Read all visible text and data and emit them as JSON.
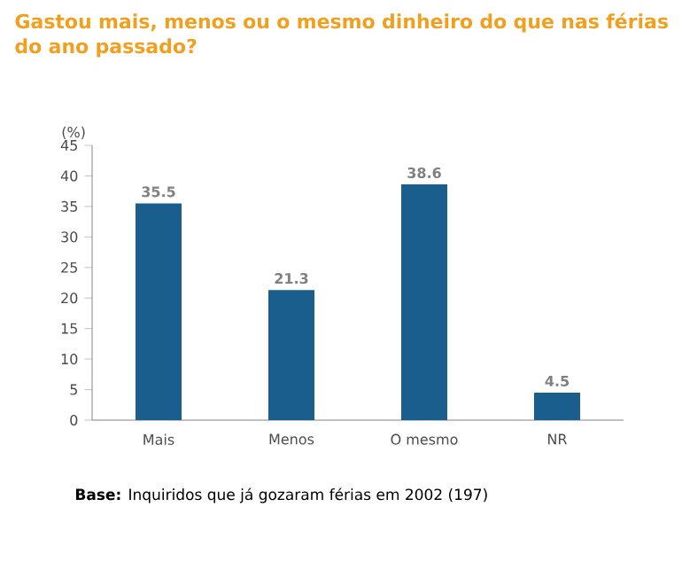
{
  "chart_data": {
    "type": "bar",
    "title": "Gastou mais, menos ou o mesmo dinheiro do que nas férias do ano passado?",
    "ylabel": "(%)",
    "categories": [
      "Mais",
      "Menos",
      "O mesmo",
      "NR"
    ],
    "values": [
      35.5,
      21.3,
      38.6,
      4.5
    ],
    "color": "#1a5e8e",
    "ylim": [
      0,
      45
    ],
    "yticks": [
      0,
      5,
      10,
      15,
      20,
      25,
      30,
      35,
      40,
      45
    ],
    "data_labels": true,
    "grid": false,
    "annotations": [
      "**Base:** Inquiridos que já gozaram férias em 2002 (197)"
    ]
  }
}
